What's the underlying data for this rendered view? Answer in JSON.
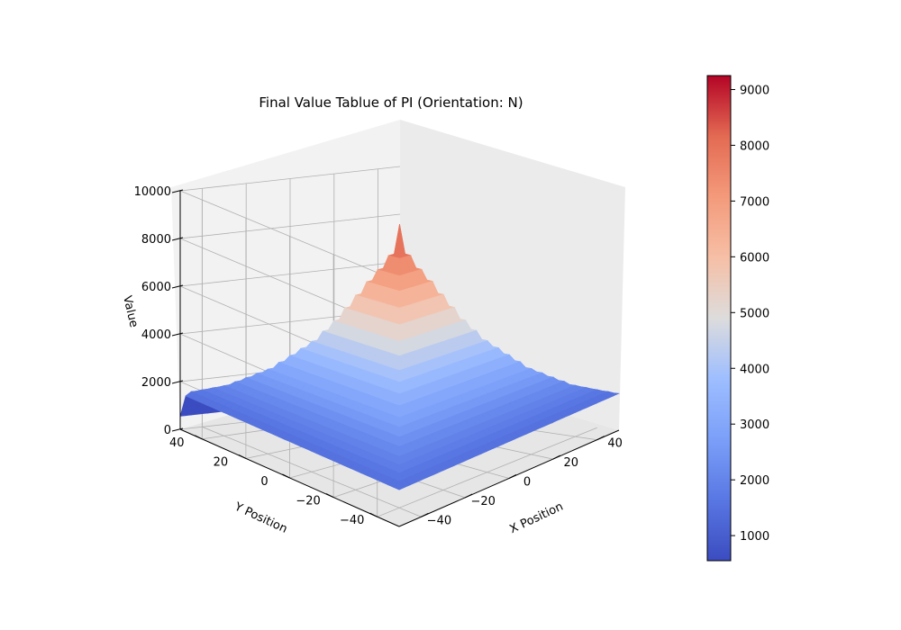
{
  "chart_data": {
    "type": "surface3d",
    "title": "Final Value Tablue of PI (Orientation: N)",
    "xlabel": "X Position",
    "ylabel": "Y Position",
    "zlabel": "Value",
    "xlim": [
      -50,
      50
    ],
    "ylim": [
      -50,
      50
    ],
    "zlim": [
      0,
      10000
    ],
    "x_ticks": [
      -40,
      -20,
      0,
      20,
      40
    ],
    "y_ticks": [
      -40,
      -20,
      0,
      20,
      40
    ],
    "z_ticks": [
      0,
      2000,
      4000,
      6000,
      8000,
      10000
    ],
    "x_tick_labels": [
      "−40",
      "−20",
      "0",
      "20",
      "40"
    ],
    "y_tick_labels": [
      "−40",
      "−20",
      "0",
      "20",
      "40"
    ],
    "z_tick_labels": [
      "0",
      "2000",
      "4000",
      "6000",
      "8000",
      "10000"
    ],
    "colormap": "coolwarm",
    "colorbar": {
      "range": [
        550,
        9250
      ],
      "ticks": [
        1000,
        2000,
        3000,
        4000,
        5000,
        6000,
        7000,
        8000,
        9000
      ],
      "tick_labels": [
        "1000",
        "2000",
        "3000",
        "4000",
        "5000",
        "6000",
        "7000",
        "8000",
        "9000"
      ]
    },
    "surface_profile": {
      "description_points": [
        {
          "distance": 0,
          "value": 9250
        },
        {
          "distance": 3,
          "value": 7700
        },
        {
          "distance": 6,
          "value": 7200
        },
        {
          "distance": 10,
          "value": 6300
        },
        {
          "distance": 15,
          "value": 5200
        },
        {
          "distance": 20,
          "value": 4300
        },
        {
          "distance": 30,
          "value": 3000
        },
        {
          "distance": 40,
          "value": 2100
        },
        {
          "distance": 50,
          "value": 1500
        }
      ],
      "edge_y_minimum": 550,
      "grid": true
    }
  }
}
